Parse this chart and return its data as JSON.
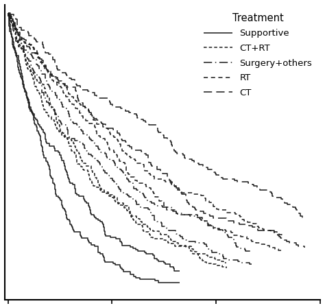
{
  "title": "Treatment",
  "legend_entries": [
    "Supportive",
    "CT+RT",
    "Surgery+others",
    "RT",
    "CT"
  ],
  "line_color": "#1a1a1a",
  "background_color": "#ffffff",
  "lw": 1.1,
  "figsize": [
    4.74,
    4.49
  ],
  "dpi": 100,
  "groups": [
    {
      "label": "Supportive",
      "linestyle": "solid",
      "hazard": 4.5,
      "hazard2": 5.2,
      "n1": 200,
      "n2": 180,
      "seed1": 1,
      "seed2": 2,
      "max_t": 0.55
    },
    {
      "label": "CT+RT",
      "linestyle": "densely_dashed",
      "hazard": 3.0,
      "hazard2": 3.4,
      "n1": 220,
      "n2": 200,
      "seed1": 3,
      "seed2": 4,
      "max_t": 0.7
    },
    {
      "label": "Surgery+others",
      "linestyle": "dashdot_long",
      "hazard": 2.3,
      "hazard2": 2.7,
      "n1": 200,
      "n2": 185,
      "seed1": 5,
      "seed2": 6,
      "max_t": 0.78
    },
    {
      "label": "RT",
      "linestyle": "dashed",
      "hazard": 1.7,
      "hazard2": 2.0,
      "n1": 210,
      "n2": 190,
      "seed1": 7,
      "seed2": 8,
      "max_t": 0.88
    },
    {
      "label": "CT",
      "linestyle": "long_dashed",
      "hazard": 1.3,
      "hazard2": 1.6,
      "n1": 200,
      "n2": 180,
      "seed1": 9,
      "seed2": 10,
      "max_t": 0.95
    }
  ]
}
